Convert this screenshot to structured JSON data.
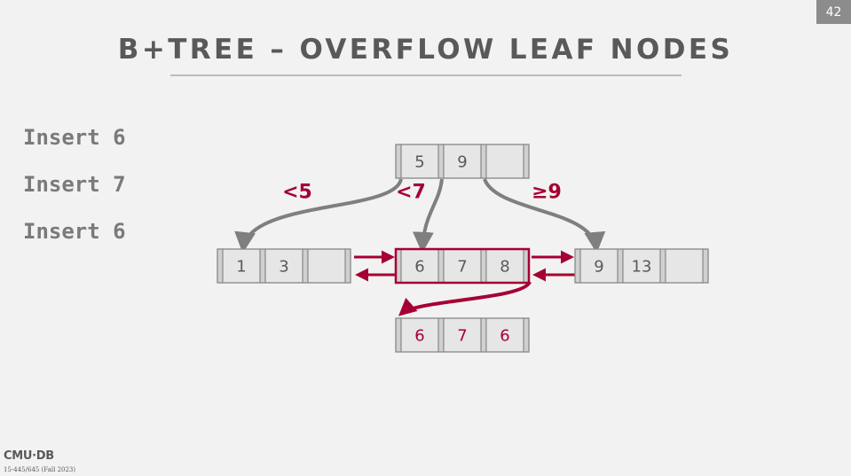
{
  "slide_number": "42",
  "title": "B+TREE – OVERFLOW LEAF NODES",
  "operations": [
    "Insert 6",
    "Insert 7",
    "Insert 6"
  ],
  "footer": {
    "logo": "CMU·DB",
    "course": "15-445/645 (Fall 2023)"
  },
  "colors": {
    "accent": "#a50034",
    "node_gray": "#8c8c8c",
    "text_gray": "#595959"
  },
  "tree": {
    "root": {
      "keys": [
        "5",
        "9",
        ""
      ]
    },
    "edge_labels": [
      "<5",
      "<7",
      "≥9"
    ],
    "leaves": [
      {
        "keys": [
          "1",
          "3",
          ""
        ]
      },
      {
        "keys": [
          "6",
          "7",
          "8"
        ],
        "highlighted": true
      },
      {
        "keys": [
          "9",
          "13",
          ""
        ]
      }
    ],
    "overflow": {
      "keys": [
        "6",
        "7",
        "6"
      ],
      "highlighted": true
    }
  }
}
